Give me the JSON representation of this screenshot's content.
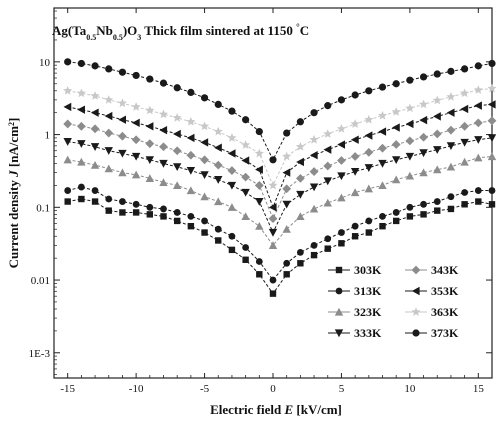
{
  "chart_data": {
    "type": "line",
    "title": "Ag(Ta0.5Nb0.5)O3 Thick film sintered at 1150 °C",
    "title_parts": {
      "prefix": "Ag(Ta",
      "sub1": "0.5",
      "mid": "Nb",
      "sub2": "0.5",
      "close": ")O",
      "sub3": "3",
      "suffix": " Thick film sintered at 1150 ",
      "degree": "°",
      "unit": "C"
    },
    "xlabel_parts": {
      "a": "Electric field ",
      "b": "E",
      "c": " [kV/cm]"
    },
    "ylabel_parts": {
      "a": "Current density ",
      "b": "J",
      "c": " [nA/cm",
      "sup": "2",
      "d": "]"
    },
    "xlim": [
      -16,
      16
    ],
    "ylim_log": [
      0.00045,
      55
    ],
    "xticks": [
      -15,
      -10,
      -5,
      0,
      5,
      10,
      15
    ],
    "xtick_labels": [
      "-15",
      "-10",
      "-5",
      "0",
      "5",
      "10",
      "15"
    ],
    "yticks": [
      0.001,
      0.01,
      0.1,
      1,
      10
    ],
    "ytick_labels": [
      "1E-3",
      "0.01",
      "0.1",
      "1",
      "10"
    ],
    "log_y": true,
    "legend_position": "bottom-right",
    "x": [
      -15,
      -14,
      -13,
      -12,
      -11,
      -10,
      -9,
      -8,
      -7,
      -6,
      -5,
      -4,
      -3,
      -2,
      -1,
      0,
      1,
      2,
      3,
      4,
      5,
      6,
      7,
      8,
      9,
      10,
      11,
      12,
      13,
      14,
      15,
      16
    ],
    "series": [
      {
        "name": "303K",
        "marker": "square",
        "values": [
          0.12,
          0.13,
          0.12,
          0.09,
          0.085,
          0.085,
          0.08,
          0.075,
          0.065,
          0.055,
          0.045,
          0.035,
          0.026,
          0.019,
          0.012,
          0.0065,
          0.012,
          0.017,
          0.022,
          0.027,
          0.032,
          0.04,
          0.045,
          0.055,
          0.065,
          0.075,
          0.08,
          0.09,
          0.095,
          0.11,
          0.12,
          0.11
        ]
      },
      {
        "name": "313K",
        "marker": "circle",
        "values": [
          0.17,
          0.19,
          0.17,
          0.13,
          0.12,
          0.11,
          0.1,
          0.095,
          0.085,
          0.075,
          0.065,
          0.05,
          0.04,
          0.028,
          0.018,
          0.01,
          0.017,
          0.024,
          0.03,
          0.037,
          0.045,
          0.055,
          0.065,
          0.075,
          0.085,
          0.1,
          0.11,
          0.12,
          0.14,
          0.16,
          0.17,
          0.17
        ]
      },
      {
        "name": "323K",
        "marker": "triangle-up",
        "values": [
          0.45,
          0.42,
          0.38,
          0.34,
          0.3,
          0.28,
          0.25,
          0.22,
          0.2,
          0.17,
          0.14,
          0.12,
          0.1,
          0.075,
          0.055,
          0.03,
          0.05,
          0.075,
          0.095,
          0.115,
          0.135,
          0.16,
          0.18,
          0.2,
          0.24,
          0.27,
          0.3,
          0.33,
          0.36,
          0.42,
          0.48,
          0.5
        ]
      },
      {
        "name": "333K",
        "marker": "triangle-down",
        "values": [
          0.8,
          0.75,
          0.68,
          0.6,
          0.55,
          0.5,
          0.45,
          0.4,
          0.36,
          0.32,
          0.28,
          0.24,
          0.2,
          0.16,
          0.12,
          0.045,
          0.11,
          0.15,
          0.19,
          0.23,
          0.27,
          0.31,
          0.35,
          0.4,
          0.45,
          0.5,
          0.56,
          0.62,
          0.7,
          0.78,
          0.85,
          0.9
        ]
      },
      {
        "name": "343K",
        "marker": "diamond",
        "values": [
          1.4,
          1.3,
          1.2,
          1.05,
          0.95,
          0.85,
          0.75,
          0.68,
          0.6,
          0.52,
          0.45,
          0.38,
          0.32,
          0.26,
          0.2,
          0.07,
          0.18,
          0.25,
          0.31,
          0.37,
          0.44,
          0.5,
          0.57,
          0.65,
          0.73,
          0.82,
          0.92,
          1.02,
          1.15,
          1.3,
          1.45,
          1.55
        ]
      },
      {
        "name": "353K",
        "marker": "triangle-left",
        "values": [
          2.4,
          2.2,
          2.0,
          1.8,
          1.6,
          1.45,
          1.3,
          1.15,
          1.02,
          0.9,
          0.78,
          0.66,
          0.55,
          0.44,
          0.33,
          0.1,
          0.3,
          0.42,
          0.52,
          0.62,
          0.73,
          0.85,
          0.97,
          1.1,
          1.25,
          1.4,
          1.58,
          1.78,
          2.0,
          2.25,
          2.5,
          2.6
        ]
      },
      {
        "name": "363K",
        "marker": "star",
        "values": [
          4.0,
          3.7,
          3.4,
          3.0,
          2.7,
          2.4,
          2.15,
          1.9,
          1.7,
          1.5,
          1.3,
          1.1,
          0.9,
          0.72,
          0.55,
          0.2,
          0.5,
          0.68,
          0.85,
          1.02,
          1.2,
          1.4,
          1.6,
          1.82,
          2.05,
          2.3,
          2.6,
          2.95,
          3.3,
          3.7,
          4.1,
          4.3
        ]
      },
      {
        "name": "373K",
        "marker": "circle",
        "values": [
          10.0,
          9.5,
          8.8,
          8.0,
          7.2,
          6.5,
          5.8,
          5.1,
          4.4,
          3.8,
          3.2,
          2.6,
          2.1,
          1.6,
          1.1,
          0.45,
          1.05,
          1.5,
          2.0,
          2.5,
          3.0,
          3.5,
          4.0,
          4.5,
          5.0,
          5.6,
          6.2,
          6.8,
          7.4,
          8.0,
          8.8,
          9.5
        ]
      }
    ]
  }
}
